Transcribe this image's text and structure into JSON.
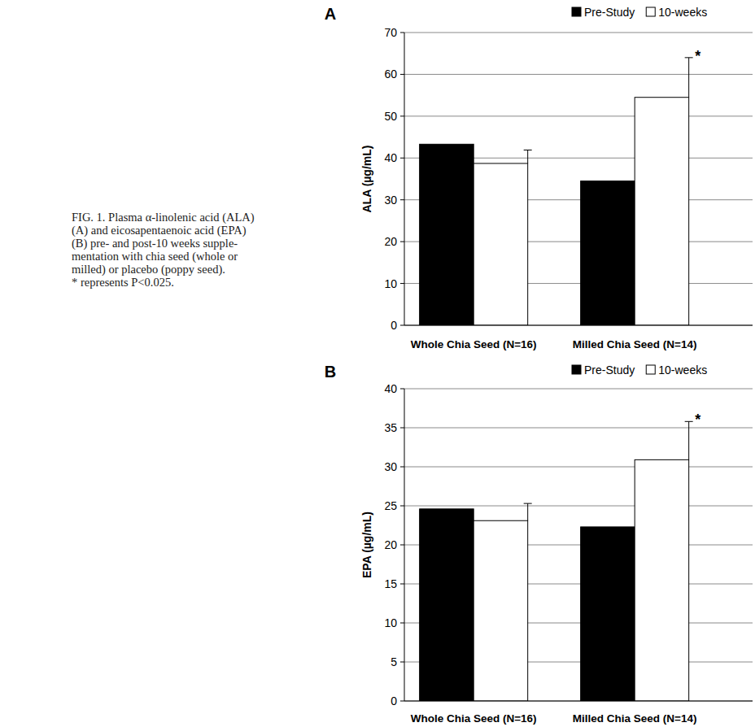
{
  "caption": [
    "FIG. 1.  Plasma α-linolenic acid (ALA)",
    "(A) and eicosapentaenoic acid (EPA)",
    "(B) pre- and post-10 weeks supple-",
    "mentation with chia seed (whole or",
    "milled) or placebo (poppy seed).",
    "* represents P<0.025."
  ],
  "chart_data": [
    {
      "type": "bar",
      "title": "A",
      "y_label": "ALA (µg/mL)",
      "categories": [
        "Whole Chia Seed (N=16)",
        "Milled Chia Seed (N=14)"
      ],
      "series": [
        {
          "name": "Pre-Study",
          "color": "#000000",
          "values": [
            43.3,
            34.5
          ],
          "errors": [
            null,
            null
          ]
        },
        {
          "name": "10-weeks",
          "color": "#ffffff",
          "values": [
            38.7,
            54.5
          ],
          "errors": [
            3.2,
            9.5
          ]
        }
      ],
      "ylim": [
        0,
        70
      ],
      "yticks": [
        0,
        10,
        20,
        30,
        40,
        50,
        60,
        70
      ],
      "grid": true,
      "legend": "top-right",
      "annotations": [
        {
          "text": "*",
          "x": "Milled Chia Seed (N=14)",
          "series": "10-weeks"
        }
      ]
    },
    {
      "type": "bar",
      "title": "B",
      "y_label": "EPA (µg/mL)",
      "categories": [
        "Whole Chia Seed (N=16)",
        "Milled Chia Seed (N=14)"
      ],
      "series": [
        {
          "name": "Pre-Study",
          "color": "#000000",
          "values": [
            24.6,
            22.3
          ],
          "errors": [
            null,
            null
          ]
        },
        {
          "name": "10-weeks",
          "color": "#ffffff",
          "values": [
            23.1,
            30.9
          ],
          "errors": [
            2.2,
            4.9
          ]
        }
      ],
      "ylim": [
        0,
        40
      ],
      "yticks": [
        0,
        5,
        10,
        15,
        20,
        25,
        30,
        35,
        40
      ],
      "grid": true,
      "legend": "top-right",
      "annotations": [
        {
          "text": "*",
          "x": "Milled Chia Seed (N=14)",
          "series": "10-weeks"
        }
      ]
    }
  ]
}
